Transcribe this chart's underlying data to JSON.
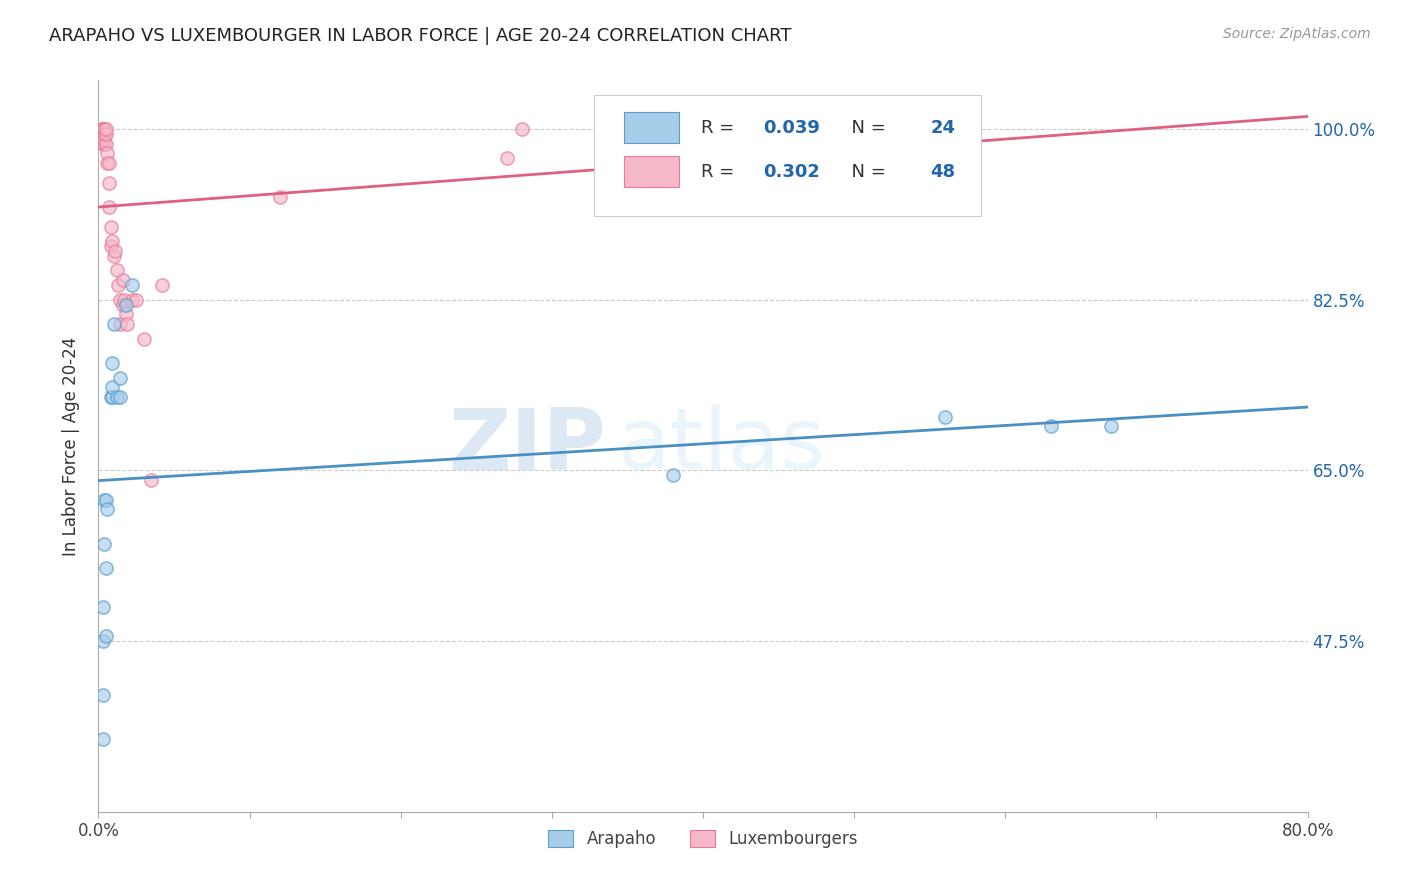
{
  "title": "ARAPAHO VS LUXEMBOURGER IN LABOR FORCE | AGE 20-24 CORRELATION CHART",
  "source": "Source: ZipAtlas.com",
  "ylabel": "In Labor Force | Age 20-24",
  "xlim": [
    0.0,
    0.8
  ],
  "ylim": [
    0.3,
    1.05
  ],
  "xticks": [
    0.0,
    0.1,
    0.2,
    0.3,
    0.4,
    0.5,
    0.6,
    0.7,
    0.8
  ],
  "xticklabels": [
    "0.0%",
    "",
    "",
    "",
    "",
    "",
    "",
    "",
    "80.0%"
  ],
  "ytick_right_labels": [
    "100.0%",
    "82.5%",
    "65.0%",
    "47.5%"
  ],
  "ytick_right_values": [
    1.0,
    0.825,
    0.65,
    0.475
  ],
  "watermark_zip": "ZIP",
  "watermark_atlas": "atlas",
  "arapaho_x": [
    0.003,
    0.003,
    0.003,
    0.003,
    0.004,
    0.004,
    0.005,
    0.005,
    0.005,
    0.006,
    0.008,
    0.009,
    0.009,
    0.009,
    0.01,
    0.012,
    0.014,
    0.014,
    0.018,
    0.022,
    0.38,
    0.56,
    0.63,
    0.67
  ],
  "arapaho_y": [
    0.375,
    0.42,
    0.475,
    0.51,
    0.575,
    0.62,
    0.48,
    0.55,
    0.62,
    0.61,
    0.725,
    0.725,
    0.735,
    0.76,
    0.8,
    0.725,
    0.725,
    0.745,
    0.82,
    0.84,
    0.645,
    0.705,
    0.695,
    0.695
  ],
  "luxembourger_x": [
    0.003,
    0.003,
    0.003,
    0.003,
    0.003,
    0.003,
    0.003,
    0.003,
    0.003,
    0.003,
    0.003,
    0.003,
    0.004,
    0.004,
    0.004,
    0.004,
    0.004,
    0.005,
    0.005,
    0.005,
    0.006,
    0.006,
    0.007,
    0.007,
    0.007,
    0.008,
    0.008,
    0.009,
    0.01,
    0.011,
    0.012,
    0.013,
    0.014,
    0.014,
    0.016,
    0.016,
    0.017,
    0.018,
    0.019,
    0.022,
    0.025,
    0.03,
    0.035,
    0.042,
    0.12,
    0.27,
    0.28,
    0.38
  ],
  "luxembourger_y": [
    0.985,
    0.99,
    0.995,
    1.0,
    1.0,
    1.0,
    1.0,
    1.0,
    1.0,
    1.0,
    1.0,
    1.0,
    0.985,
    0.99,
    0.995,
    1.0,
    1.0,
    0.985,
    0.995,
    1.0,
    0.965,
    0.975,
    0.92,
    0.945,
    0.965,
    0.88,
    0.9,
    0.885,
    0.87,
    0.875,
    0.855,
    0.84,
    0.8,
    0.825,
    0.845,
    0.82,
    0.825,
    0.81,
    0.8,
    0.825,
    0.825,
    0.785,
    0.64,
    0.84,
    0.93,
    0.97,
    1.0,
    1.0
  ],
  "arapaho_color": "#a8cde8",
  "arapaho_edge": "#5a9fcc",
  "luxembourger_color": "#f4b8c8",
  "luxembourger_edge": "#e87a99",
  "trend_arapaho_color": "#4a90c4",
  "trend_luxembourger_color": "#e06080",
  "marker_size": 90,
  "alpha": 0.65,
  "background_color": "#ffffff",
  "grid_color": "#cccccc",
  "legend_R1": "0.039",
  "legend_N1": "24",
  "legend_R2": "0.302",
  "legend_N2": "48",
  "legend_color_num": "#2166ac",
  "legend_color_text": "#333333"
}
